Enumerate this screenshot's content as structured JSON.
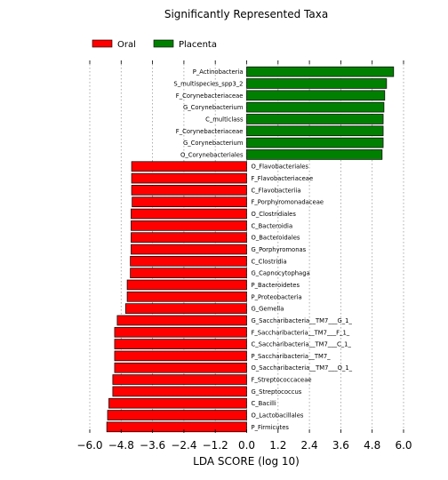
{
  "chart_data": {
    "type": "bar",
    "orientation": "horizontal",
    "title": "Significantly Represented Taxa",
    "xlabel": "LDA SCORE (log 10)",
    "ylabel": "",
    "xlim": [
      -6.0,
      6.0
    ],
    "xticks": [
      -6.0,
      -4.8,
      -3.6,
      -2.4,
      -1.2,
      0.0,
      1.2,
      2.4,
      3.6,
      4.8,
      6.0
    ],
    "xtick_labels": [
      "−6.0",
      "−4.8",
      "−3.6",
      "−2.4",
      "−1.2",
      "0.0",
      "1.2",
      "2.4",
      "3.6",
      "4.8",
      "6.0"
    ],
    "grid": "vertical-dotted",
    "legend_position": "top-left",
    "series": [
      {
        "name": "Oral",
        "color": "#ff0000",
        "categories": [
          "O_Flavobacteriales",
          "F_Flavobacteriaceae",
          "C_Flavobacteriia",
          "F_Porphyromonadaceae",
          "O_Clostridiales",
          "C_Bacteroidia",
          "O_Bacteroidales",
          "G_Porphyromonas",
          "C_Clostridia",
          "G_Capnocytophaga",
          "P_Bacteroidetes",
          "P_Proteobacteria",
          "G_Gemella",
          "G_Saccharibacteria__TM7___G_1_",
          "F_Saccharibacteria__TM7___F_1_",
          "C_Saccharibacteria__TM7___C_1_",
          "P_Saccharibacteria__TM7_",
          "O_Saccharibacteria__TM7___O_1_",
          "F_Streptococcaceae",
          "G_Streptococcus",
          "C_Bacilli",
          "O_Lactobacillales",
          "P_Firmicutes"
        ],
        "values": [
          -4.4,
          -4.4,
          -4.4,
          -4.38,
          -4.42,
          -4.42,
          -4.42,
          -4.42,
          -4.45,
          -4.45,
          -4.57,
          -4.57,
          -4.63,
          -4.95,
          -5.05,
          -5.05,
          -5.05,
          -5.05,
          -5.12,
          -5.12,
          -5.27,
          -5.32,
          -5.35
        ]
      },
      {
        "name": "Placenta",
        "color": "#008000",
        "categories": [
          "P_Actinobacteria",
          "S_multispecies_spp3_2",
          "F_Corynebacteriaceae",
          "G_Corynebacterium",
          "C_multiclass",
          "F_Corynebacteriaceae",
          "G_Corynebacterium",
          "O_Corynebacteriales"
        ],
        "values": [
          5.62,
          5.35,
          5.28,
          5.25,
          5.22,
          5.22,
          5.22,
          5.18
        ]
      }
    ]
  }
}
